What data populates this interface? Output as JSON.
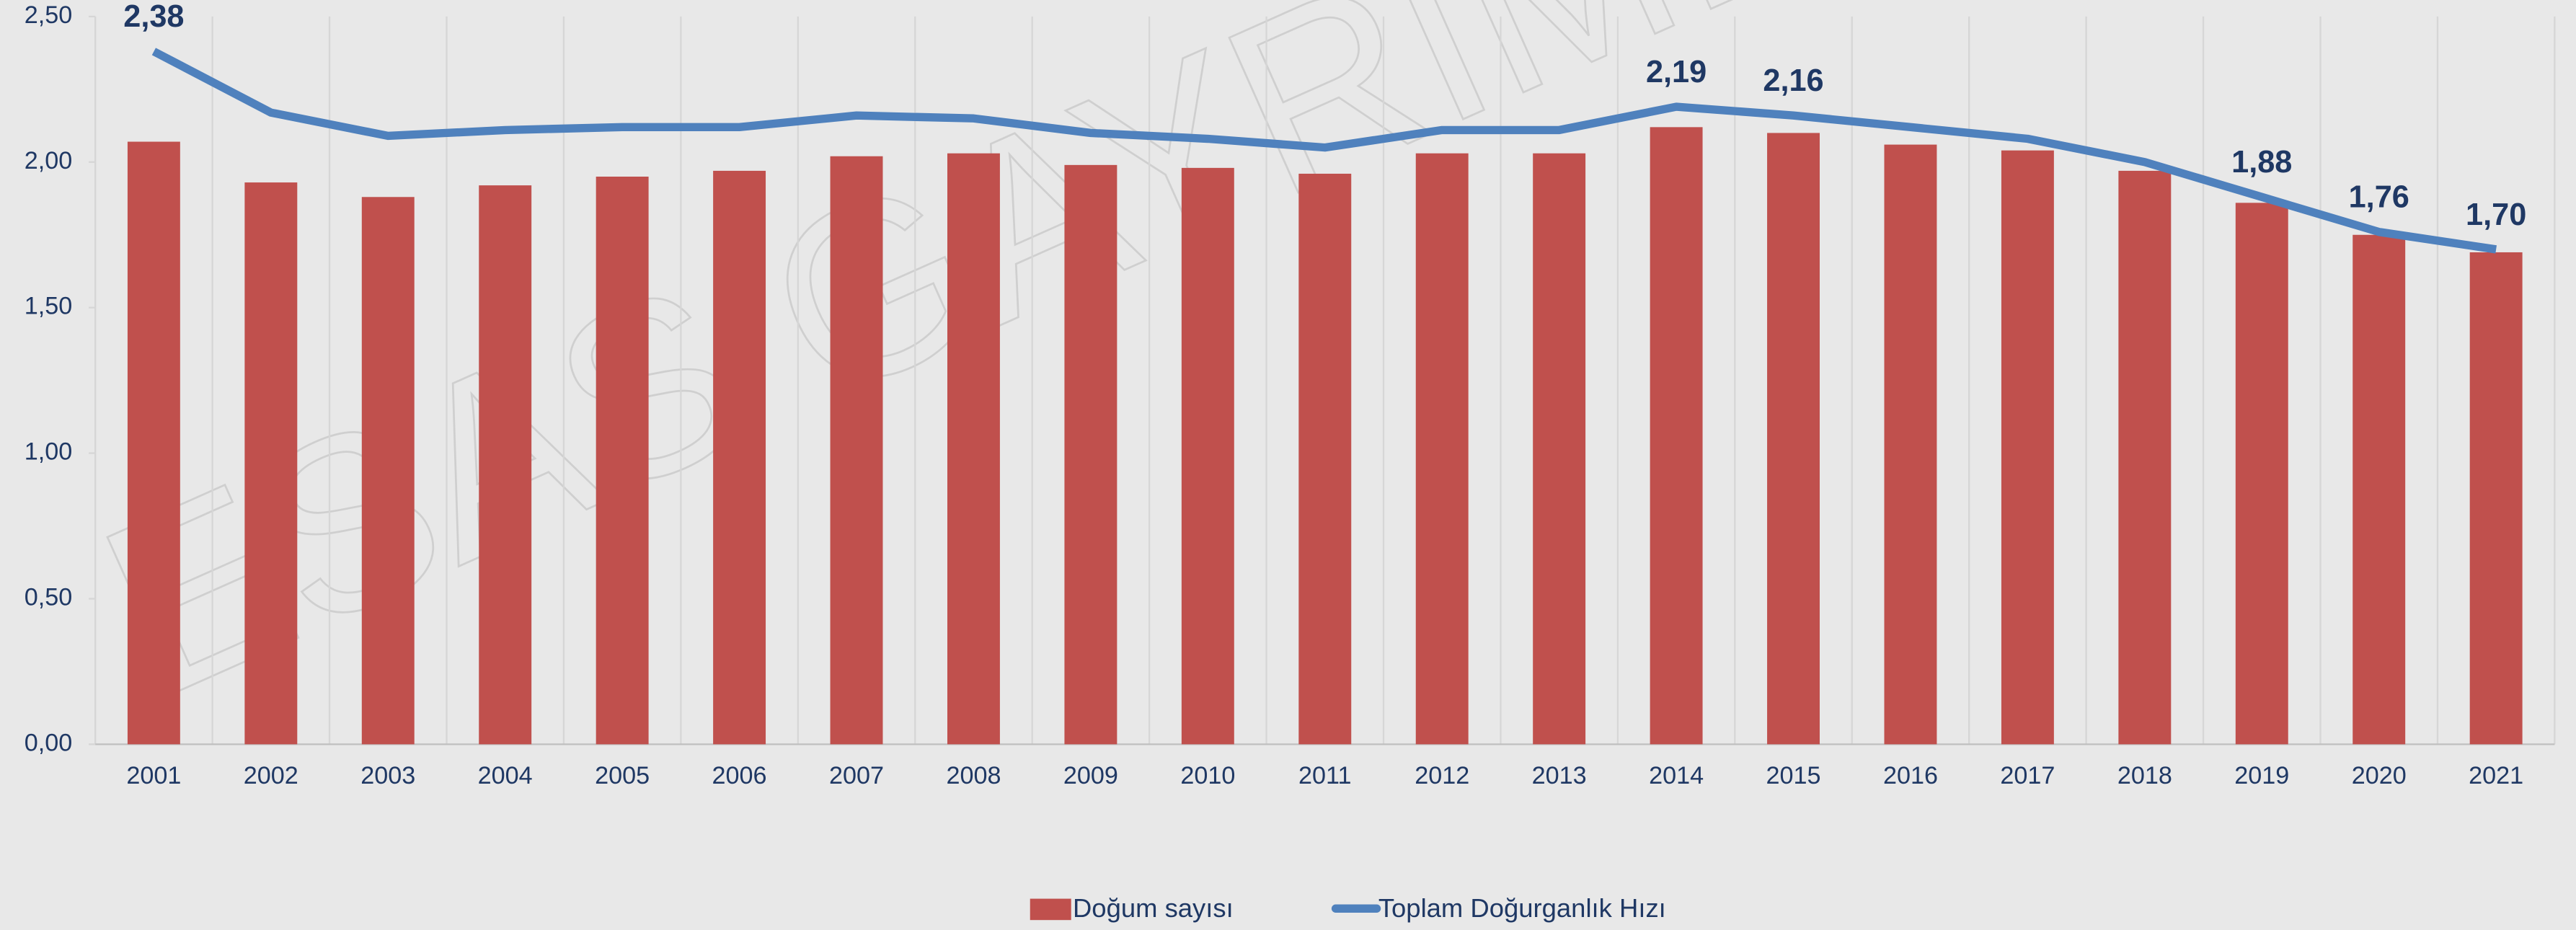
{
  "chart_data": {
    "type": "bar_line",
    "watermark": "ESAS GAYRİMENKUL",
    "categories": [
      "2001",
      "2002",
      "2003",
      "2004",
      "2005",
      "2006",
      "2007",
      "2008",
      "2009",
      "2010",
      "2011",
      "2012",
      "2013",
      "2014",
      "2015",
      "2016",
      "2017",
      "2018",
      "2019",
      "2020",
      "2021"
    ],
    "series": [
      {
        "name": "Doğum sayısı",
        "type": "bar",
        "color": "#c0504d",
        "values": [
          2.07,
          1.93,
          1.88,
          1.92,
          1.95,
          1.97,
          2.02,
          2.03,
          1.99,
          1.98,
          1.96,
          2.03,
          2.03,
          2.12,
          2.1,
          2.06,
          2.04,
          1.97,
          1.86,
          1.75,
          1.69
        ]
      },
      {
        "name": "Toplam Doğurganlık Hızı",
        "type": "line",
        "color": "#4f81bd",
        "values": [
          2.38,
          2.17,
          2.09,
          2.11,
          2.12,
          2.12,
          2.16,
          2.15,
          2.1,
          2.08,
          2.05,
          2.11,
          2.11,
          2.19,
          2.16,
          2.12,
          2.08,
          2.0,
          1.88,
          1.76,
          1.7
        ],
        "value_labels": [
          "2,38",
          null,
          null,
          null,
          null,
          null,
          null,
          null,
          null,
          null,
          null,
          null,
          null,
          "2,19",
          "2,16",
          null,
          null,
          null,
          "1,88",
          "1,76",
          "1,70"
        ]
      }
    ],
    "ylim": [
      0,
      2.5
    ],
    "yticks": [
      {
        "value": 0,
        "label": "0,00"
      },
      {
        "value": 0.5,
        "label": "0,50"
      },
      {
        "value": 1,
        "label": "1,00"
      },
      {
        "value": 1.5,
        "label": "1,50"
      },
      {
        "value": 2,
        "label": "2,00"
      },
      {
        "value": 2.5,
        "label": "2,50"
      }
    ],
    "legend": "bottom"
  }
}
